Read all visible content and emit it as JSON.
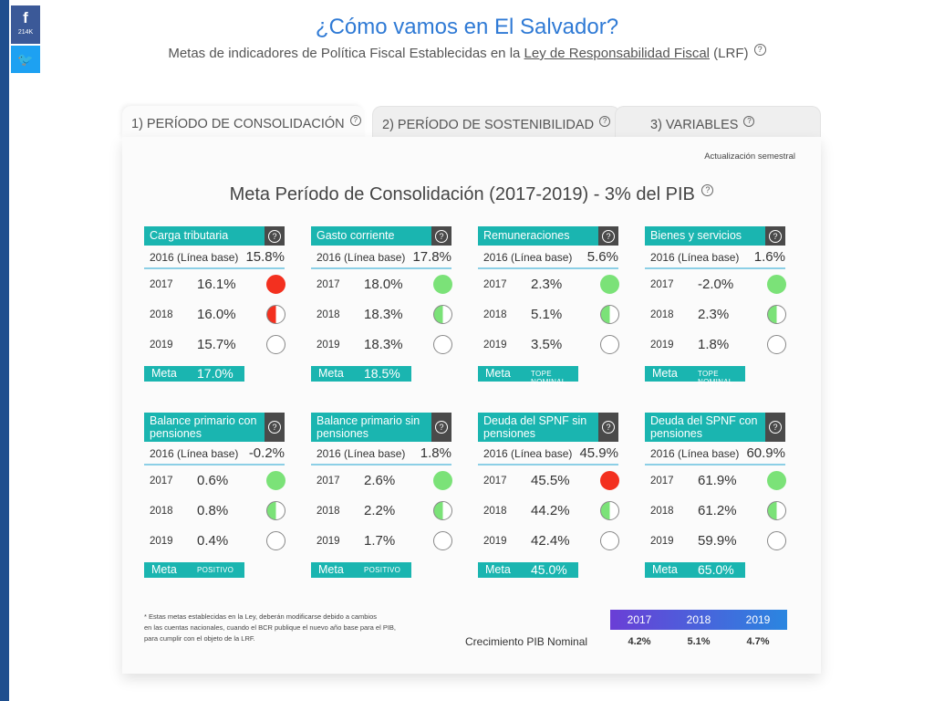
{
  "share": {
    "facebook_icon": "f",
    "facebook_count": "214K",
    "twitter_icon": "🐦"
  },
  "header": {
    "title": "¿Cómo vamos en El Salvador?",
    "subtitle_prefix": "Metas de indicadores de Política Fiscal Establecidas en la ",
    "subtitle_link": "Ley de Responsabilidad Fiscal",
    "subtitle_suffix": " (LRF)",
    "help": "?"
  },
  "tabs": [
    {
      "label": "1) PERÍODO DE CONSOLIDACIÓN"
    },
    {
      "label": "2) PERÍODO DE SOSTENIBILIDAD"
    },
    {
      "label": "3) VARIABLES"
    }
  ],
  "panel": {
    "update_note": "Actualización semestral",
    "title": "Meta Período de Consolidación (2017-2019) - 3% del PIB"
  },
  "cards": [
    {
      "title": "Carga tributaria",
      "base_label": "2016 (Línea base)",
      "base_value": "15.8%",
      "rows": [
        {
          "year": "2017",
          "value": "16.1%",
          "status": "red"
        },
        {
          "year": "2018",
          "value": "16.0%",
          "status": "half-red"
        },
        {
          "year": "2019",
          "value": "15.7%",
          "status": "empty"
        }
      ],
      "meta_label": "Meta",
      "meta_value": "17.0%",
      "meta_small": false
    },
    {
      "title": "Gasto corriente",
      "base_label": "2016 (Línea base)",
      "base_value": "17.8%",
      "rows": [
        {
          "year": "2017",
          "value": "18.0%",
          "status": "green"
        },
        {
          "year": "2018",
          "value": "18.3%",
          "status": "half-green"
        },
        {
          "year": "2019",
          "value": "18.3%",
          "status": "empty"
        }
      ],
      "meta_label": "Meta",
      "meta_value": "18.5%",
      "meta_small": false
    },
    {
      "title": "Remuneraciones",
      "base_label": "2016 (Línea base)",
      "base_value": "5.6%",
      "rows": [
        {
          "year": "2017",
          "value": "2.3%",
          "status": "green"
        },
        {
          "year": "2018",
          "value": "5.1%",
          "status": "half-green"
        },
        {
          "year": "2019",
          "value": "3.5%",
          "status": "empty"
        }
      ],
      "meta_label": "Meta",
      "meta_value": "TOPE NOMINAL",
      "meta_small": true
    },
    {
      "title": "Bienes y servicios",
      "base_label": "2016 (Línea base)",
      "base_value": "1.6%",
      "rows": [
        {
          "year": "2017",
          "value": "-2.0%",
          "status": "green"
        },
        {
          "year": "2018",
          "value": "2.3%",
          "status": "half-green"
        },
        {
          "year": "2019",
          "value": "1.8%",
          "status": "empty"
        }
      ],
      "meta_label": "Meta",
      "meta_value": "TOPE NOMINAL",
      "meta_small": true
    },
    {
      "title": "Balance primario con pensiones",
      "base_label": "2016 (Línea base)",
      "base_value": "-0.2%",
      "rows": [
        {
          "year": "2017",
          "value": "0.6%",
          "status": "green"
        },
        {
          "year": "2018",
          "value": "0.8%",
          "status": "half-green"
        },
        {
          "year": "2019",
          "value": "0.4%",
          "status": "empty"
        }
      ],
      "meta_label": "Meta",
      "meta_value": "POSITIVO",
      "meta_small": true
    },
    {
      "title": "Balance primario sin pensiones",
      "base_label": "2016 (Línea base)",
      "base_value": "1.8%",
      "rows": [
        {
          "year": "2017",
          "value": "2.6%",
          "status": "green"
        },
        {
          "year": "2018",
          "value": "2.2%",
          "status": "half-green"
        },
        {
          "year": "2019",
          "value": "1.7%",
          "status": "empty"
        }
      ],
      "meta_label": "Meta",
      "meta_value": "POSITIVO",
      "meta_small": true
    },
    {
      "title": "Deuda del SPNF sin pensiones",
      "base_label": "2016 (Línea base)",
      "base_value": "45.9%",
      "rows": [
        {
          "year": "2017",
          "value": "45.5%",
          "status": "red"
        },
        {
          "year": "2018",
          "value": "44.2%",
          "status": "half-green"
        },
        {
          "year": "2019",
          "value": "42.4%",
          "status": "empty"
        }
      ],
      "meta_label": "Meta",
      "meta_value": "45.0%",
      "meta_small": false
    },
    {
      "title": "Deuda del SPNF con pensiones",
      "base_label": "2016 (Línea base)",
      "base_value": "60.9%",
      "rows": [
        {
          "year": "2017",
          "value": "61.9%",
          "status": "green"
        },
        {
          "year": "2018",
          "value": "61.2%",
          "status": "half-green"
        },
        {
          "year": "2019",
          "value": "59.9%",
          "status": "empty"
        }
      ],
      "meta_label": "Meta",
      "meta_value": "65.0%",
      "meta_small": false
    }
  ],
  "footnote": {
    "line1": "* Estas metas establecidas en la Ley, deberán modificarse debido a cambios",
    "line2": "en las cuentas nacionales, cuando el BCR publique el nuevo año base para el PIB,",
    "line3": "para cumplir con el objeto de la LRF."
  },
  "gdp": {
    "label": "Crecimiento PIB Nominal",
    "years": [
      "2017",
      "2018",
      "2019"
    ],
    "values": [
      "4.2%",
      "5.1%",
      "4.7%"
    ]
  },
  "colors": {
    "accent": "#1ab5b0",
    "red": "#f3301f",
    "green": "#7be278",
    "title_blue": "#2f7ad5"
  }
}
